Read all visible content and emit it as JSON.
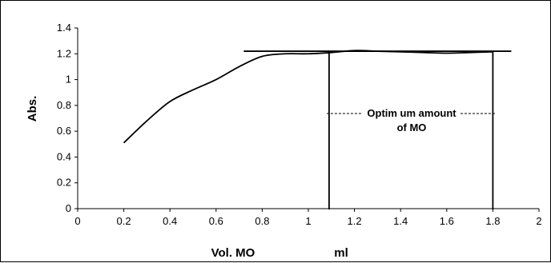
{
  "chart_data": {
    "type": "line",
    "title": "",
    "xlabel": "Vol. MO",
    "xunit": "ml",
    "ylabel": "Abs.",
    "xlim": [
      0,
      2
    ],
    "ylim": [
      0,
      1.4
    ],
    "x_ticks": [
      "0",
      "0.2",
      "0.4",
      "0.6",
      "0.8",
      "1",
      "1.2",
      "1.4",
      "1.6",
      "1.8",
      "2"
    ],
    "y_ticks": [
      "0",
      "0.2",
      "0.4",
      "0.6",
      "0.8",
      "1",
      "1.2",
      "1.4"
    ],
    "grid": false,
    "legend": "none",
    "series": [
      {
        "color": "#000000",
        "x": [
          0.2,
          0.3,
          0.4,
          0.5,
          0.6,
          0.7,
          0.8,
          0.9,
          1.0,
          1.1,
          1.2,
          1.3,
          1.4,
          1.5,
          1.6,
          1.7,
          1.8
        ],
        "y": [
          0.51,
          0.68,
          0.83,
          0.92,
          1.0,
          1.1,
          1.18,
          1.2,
          1.2,
          1.21,
          1.225,
          1.22,
          1.215,
          1.21,
          1.205,
          1.21,
          1.215
        ]
      }
    ],
    "annotation": {
      "lines": [
        "Optim um amount",
        "of MO"
      ],
      "plateau_line": {
        "x": [
          0.72,
          1.88
        ],
        "y": 1.22
      },
      "verticals": [
        1.09,
        1.8
      ]
    }
  }
}
